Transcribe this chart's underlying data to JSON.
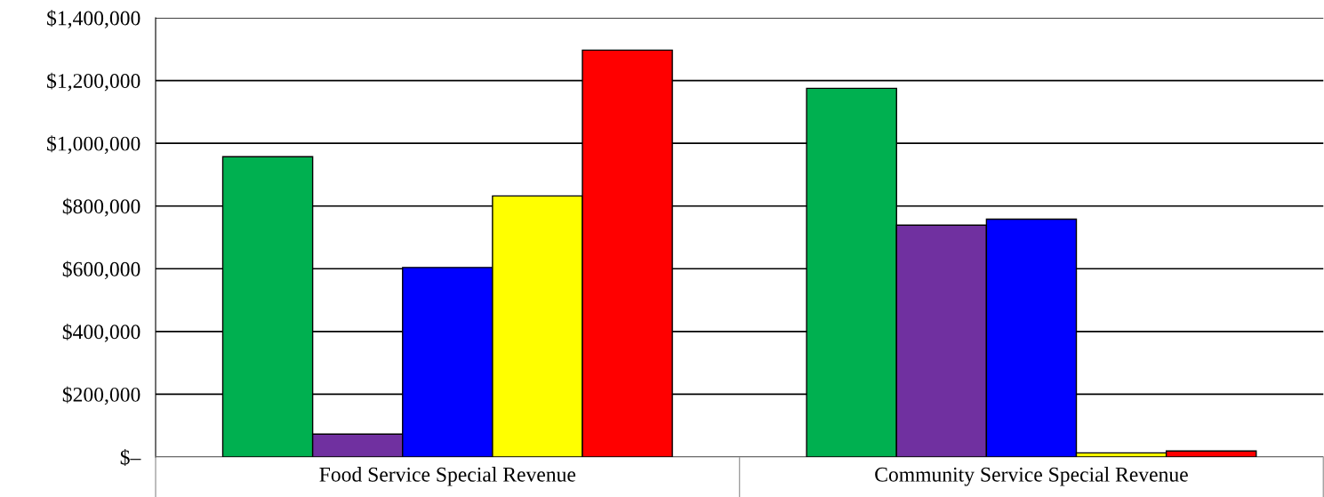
{
  "chart_data": {
    "type": "bar",
    "categories": [
      "Food Service Special Revenue",
      "Community Service Special Revenue"
    ],
    "series": [
      {
        "color": "#00b050",
        "values": [
          957000,
          1175000
        ]
      },
      {
        "color": "#7030a0",
        "values": [
          73000,
          739000
        ]
      },
      {
        "color": "#0000ff",
        "values": [
          604000,
          758000
        ]
      },
      {
        "color": "#ffff00",
        "values": [
          832000,
          13000
        ]
      },
      {
        "color": "#ff0000",
        "values": [
          1297000,
          19000
        ]
      }
    ],
    "ylim": [
      0,
      1400000
    ],
    "yticks": [
      {
        "value": 0,
        "label": "$–"
      },
      {
        "value": 200000,
        "label": "$200,000"
      },
      {
        "value": 400000,
        "label": "$400,000"
      },
      {
        "value": 600000,
        "label": "$600,000"
      },
      {
        "value": 800000,
        "label": "$800,000"
      },
      {
        "value": 1000000,
        "label": "$1,000,000"
      },
      {
        "value": 1200000,
        "label": "$1,200,000"
      },
      {
        "value": 1400000,
        "label": "$1,400,000"
      }
    ],
    "grid": "y",
    "legend": false
  }
}
